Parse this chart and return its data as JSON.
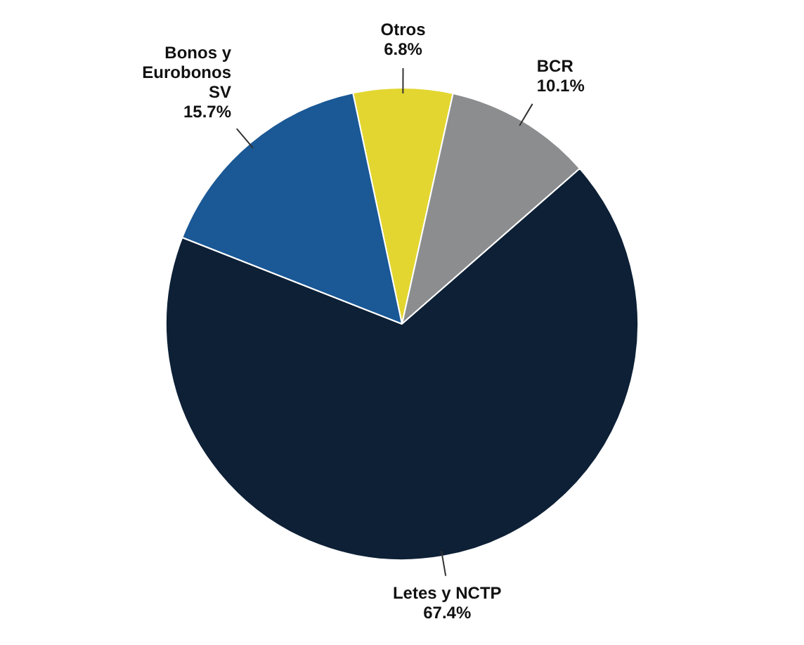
{
  "chart_data": {
    "type": "pie",
    "categories": [
      "Otros",
      "BCR",
      "Letes y NCTP",
      "Bonos y Eurobonos SV"
    ],
    "values": [
      6.8,
      10.1,
      67.4,
      15.7
    ],
    "colors": [
      "#e3d630",
      "#8b8d8f",
      "#0d2036",
      "#1a5896"
    ],
    "value_labels": [
      "6.8%",
      "10.1%",
      "67.4%",
      "15.7%"
    ],
    "legend": false
  }
}
